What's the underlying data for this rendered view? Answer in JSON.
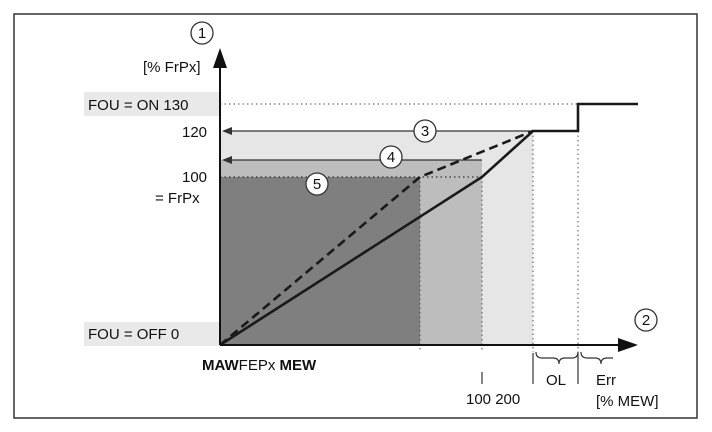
{
  "diagram": {
    "callouts": [
      "1",
      "2",
      "3",
      "4",
      "5"
    ],
    "y_axis": {
      "unit": "[% FrPx]",
      "labels": {
        "on": "FOU = ON 130",
        "v120": "120",
        "v100": "100",
        "frpx": "= FrPx",
        "off": "FOU = OFF 0"
      }
    },
    "x_axis": {
      "unit": "[% MEW]",
      "left_label_parts": [
        "MAW",
        "FEPx",
        " MEW"
      ],
      "ticks": "100 200",
      "ol": "OL",
      "err": "Err"
    },
    "colors": {
      "band_dark": "#7f7f7f",
      "band_mid": "#bdbdbd",
      "band_light": "#e6e6e6",
      "band_label": "#e9e9e9",
      "line": "#1a1a1a"
    }
  }
}
